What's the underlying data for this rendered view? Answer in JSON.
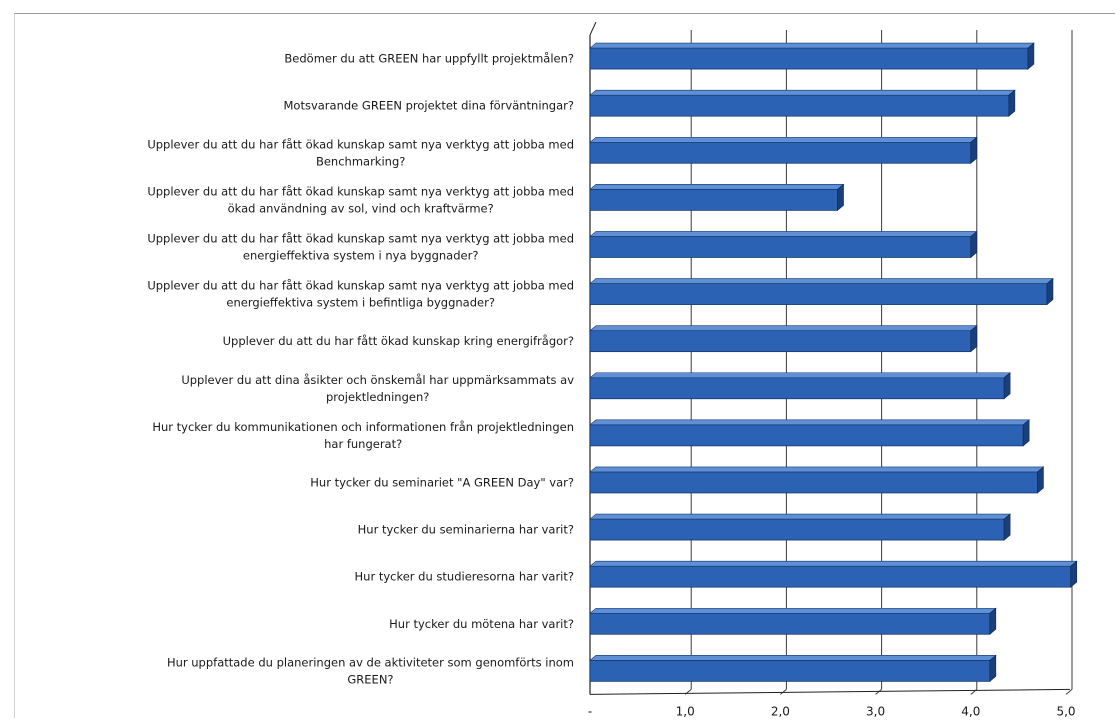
{
  "chart_data": {
    "type": "bar",
    "orientation": "horizontal",
    "title": "",
    "xlabel": "",
    "ylabel": "",
    "xlim": [
      0,
      5.1
    ],
    "x_ticks": [
      {
        "value": 0,
        "label": "-"
      },
      {
        "value": 1,
        "label": "1,0"
      },
      {
        "value": 2,
        "label": "2,0"
      },
      {
        "value": 3,
        "label": "3,0"
      },
      {
        "value": 4,
        "label": "4,0"
      },
      {
        "value": 5,
        "label": "5,0"
      }
    ],
    "grid": "vertical",
    "legend": "none",
    "bar_color": "#2b62b3",
    "bar_dark_color": "#1a3f7a",
    "bar_light_color": "#5f8fd4",
    "categories": [
      [
        "Bedömer du att GREEN har uppfyllt projektmålen?"
      ],
      [
        "Motsvarande GREEN projektet dina förväntningar?"
      ],
      [
        "Upplever du att du har fått ökad kunskap samt nya verktyg att jobba med",
        "Benchmarking?"
      ],
      [
        "Upplever du att du har fått ökad kunskap samt nya verktyg att jobba med",
        "ökad användning av sol, vind och kraftvärme?"
      ],
      [
        "Upplever du att du har fått ökad kunskap samt nya verktyg att jobba med",
        "energieffektiva system i nya byggnader?"
      ],
      [
        "Upplever du att du har fått ökad kunskap samt nya verktyg att jobba med",
        "energieffektiva system i befintliga byggnader?"
      ],
      [
        "Upplever du att du har fått ökad kunskap kring energifrågor?"
      ],
      [
        "Upplever du att dina åsikter och önskemål har uppmärksammats av",
        "projektledningen?"
      ],
      [
        "Hur tycker du kommunikationen och informationen från projektledningen",
        "har fungerat?"
      ],
      [
        "Hur tycker du seminariet \"A GREEN Day\" var?"
      ],
      [
        "Hur tycker du seminarierna har varit?"
      ],
      [
        "Hur tycker du studieresorna har varit?"
      ],
      [
        "Hur tycker du mötena har varit?"
      ],
      [
        "Hur uppfattade du planeringen av de aktiviteter som genomförts inom",
        "GREEN?"
      ]
    ],
    "values": [
      4.6,
      4.4,
      4.0,
      2.6,
      4.0,
      4.8,
      4.0,
      4.35,
      4.55,
      4.7,
      4.35,
      5.05,
      4.2,
      4.2
    ]
  }
}
